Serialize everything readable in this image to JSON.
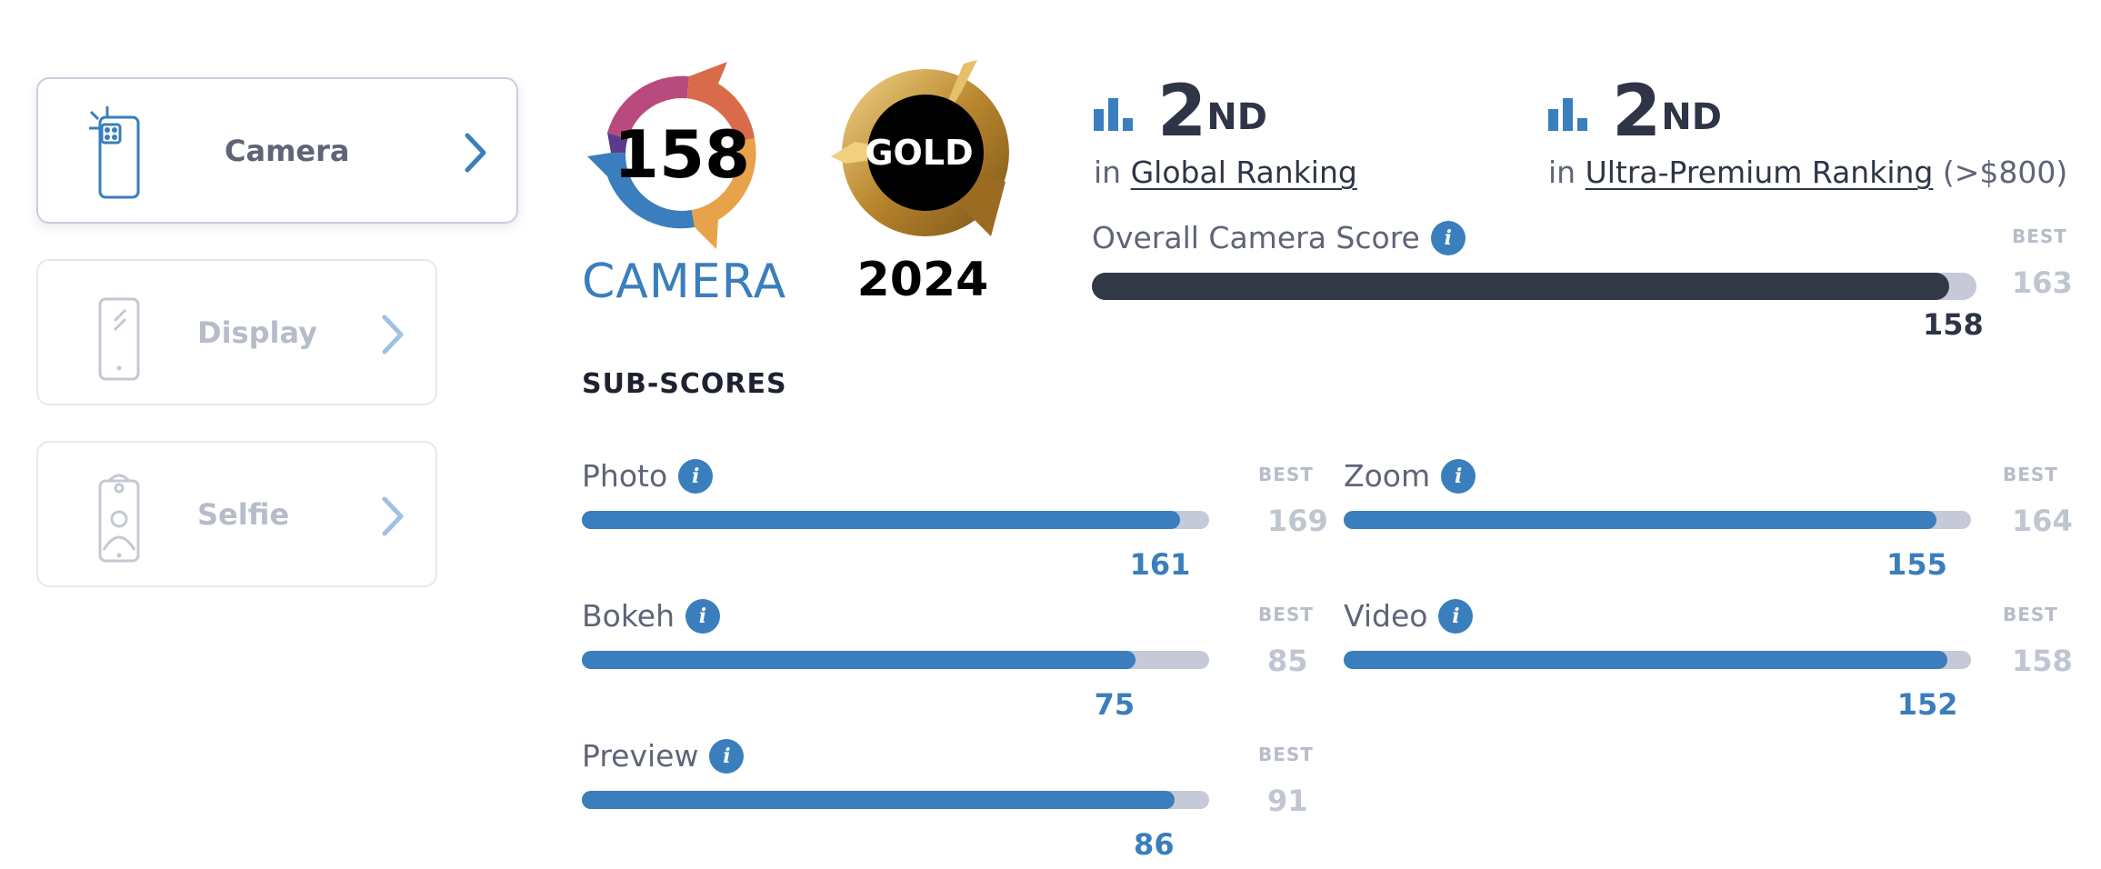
{
  "sidebar": {
    "tabs": [
      {
        "label": "Camera",
        "icon": "camera-phone-icon",
        "active": true
      },
      {
        "label": "Display",
        "icon": "display-phone-icon",
        "active": false
      },
      {
        "label": "Selfie",
        "icon": "selfie-phone-icon",
        "active": false
      }
    ]
  },
  "badges": {
    "camera": {
      "score": "158",
      "caption": "CAMERA"
    },
    "gold": {
      "label": "GOLD",
      "year": "2024"
    }
  },
  "rankings": [
    {
      "rank": "2",
      "suffix": "ND",
      "prefix": "in",
      "link": "Global Ranking",
      "extra": ""
    },
    {
      "rank": "2",
      "suffix": "ND",
      "prefix": "in",
      "link": "Ultra-Premium Ranking",
      "extra": "(>$800)"
    }
  ],
  "overall": {
    "label": "Overall Camera Score",
    "best_label": "BEST",
    "score": "158",
    "best": "163",
    "fraction": 0.969
  },
  "subscores": {
    "title": "SUB-SCORES",
    "best_label": "BEST",
    "items": [
      {
        "label": "Photo",
        "score": "161",
        "best": "169",
        "fraction": 0.953
      },
      {
        "label": "Zoom",
        "score": "155",
        "best": "164",
        "fraction": 0.945
      },
      {
        "label": "Bokeh",
        "score": "75",
        "best": "85",
        "fraction": 0.882
      },
      {
        "label": "Video",
        "score": "152",
        "best": "158",
        "fraction": 0.962
      },
      {
        "label": "Preview",
        "score": "86",
        "best": "91",
        "fraction": 0.945
      }
    ]
  },
  "colors": {
    "accent": "#3a7ebd",
    "overall_bar": "#333846",
    "track": "#c5c9d8",
    "gold": "#c99a3c"
  }
}
